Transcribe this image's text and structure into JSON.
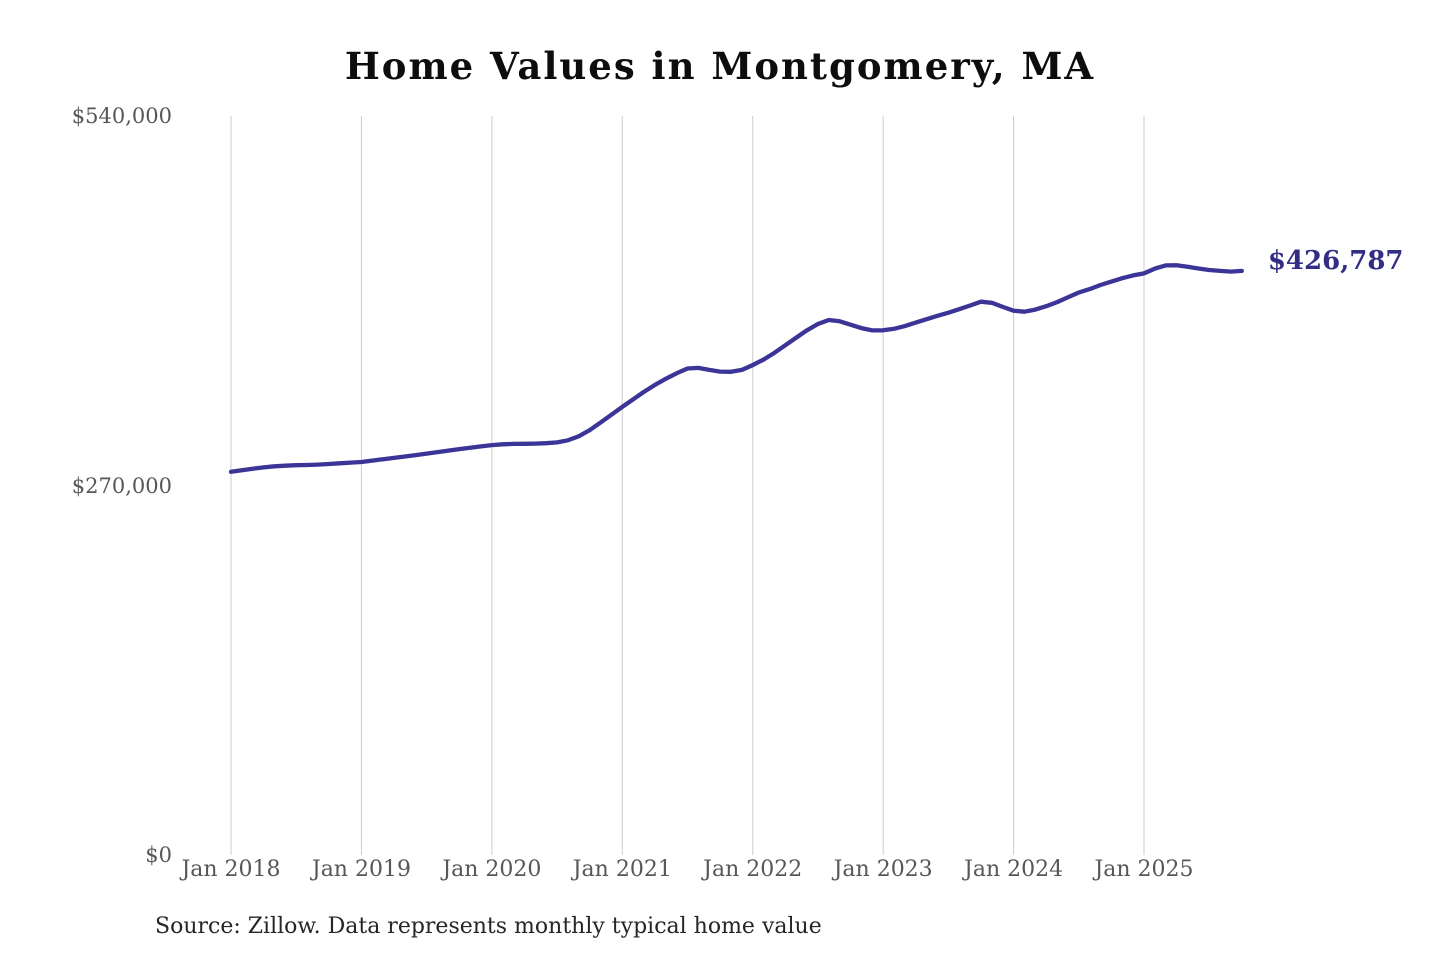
{
  "chart": {
    "title": "Home Values in Montgomery, MA",
    "latest_value_label": "$426,787",
    "source_note": "Source: Zillow. Data represents monthly typical home value",
    "colors": {
      "line": "#3b3597",
      "latest_label": "#322d85",
      "grid": "#cdcdcd",
      "tick_label": "#575757",
      "title": "#0d0d0d",
      "source": "#262626",
      "background": "#ffffff"
    }
  },
  "chart_data": {
    "type": "line",
    "title": "Home Values in Montgomery, MA",
    "xlabel": "",
    "ylabel": "",
    "ylim": [
      0,
      540000
    ],
    "y_ticks": [
      540000,
      270000,
      0
    ],
    "y_tick_labels": [
      "$540,000",
      "$270,000",
      "$0"
    ],
    "x_tick_labels": [
      "Jan 2018",
      "Jan 2019",
      "Jan 2020",
      "Jan 2021",
      "Jan 2022",
      "Jan 2023",
      "Jan 2024",
      "Jan 2025"
    ],
    "x_start_month": "Jan 2018",
    "x_end_month": "Oct 2025",
    "points_per_year": 12,
    "grid": "vertical-only",
    "legend": "none",
    "latest_value": 426787,
    "series": [
      {
        "name": "Monthly typical home value",
        "values": [
          280000,
          281200,
          282300,
          283200,
          284000,
          284500,
          284800,
          285000,
          285300,
          285700,
          286200,
          286700,
          287200,
          288200,
          289200,
          290200,
          291200,
          292200,
          293300,
          294400,
          295500,
          296600,
          297600,
          298600,
          299500,
          300100,
          300400,
          300500,
          300600,
          300900,
          301500,
          303000,
          306000,
          310500,
          316000,
          321700,
          327400,
          333000,
          338500,
          343500,
          348000,
          352000,
          355500,
          355900,
          354500,
          353200,
          353100,
          354500,
          358000,
          362000,
          367000,
          372500,
          378000,
          383500,
          388000,
          390900,
          390000,
          387500,
          385000,
          383300,
          383400,
          384500,
          386500,
          389000,
          391500,
          394000,
          396300,
          398800,
          401500,
          404300,
          403500,
          400500,
          397700,
          397000,
          398500,
          401000,
          404000,
          407500,
          411000,
          413500,
          416500,
          419000,
          421500,
          423500,
          425000,
          428500,
          430800,
          430900,
          429800,
          428600,
          427500,
          426800,
          426300,
          426787
        ]
      }
    ]
  }
}
